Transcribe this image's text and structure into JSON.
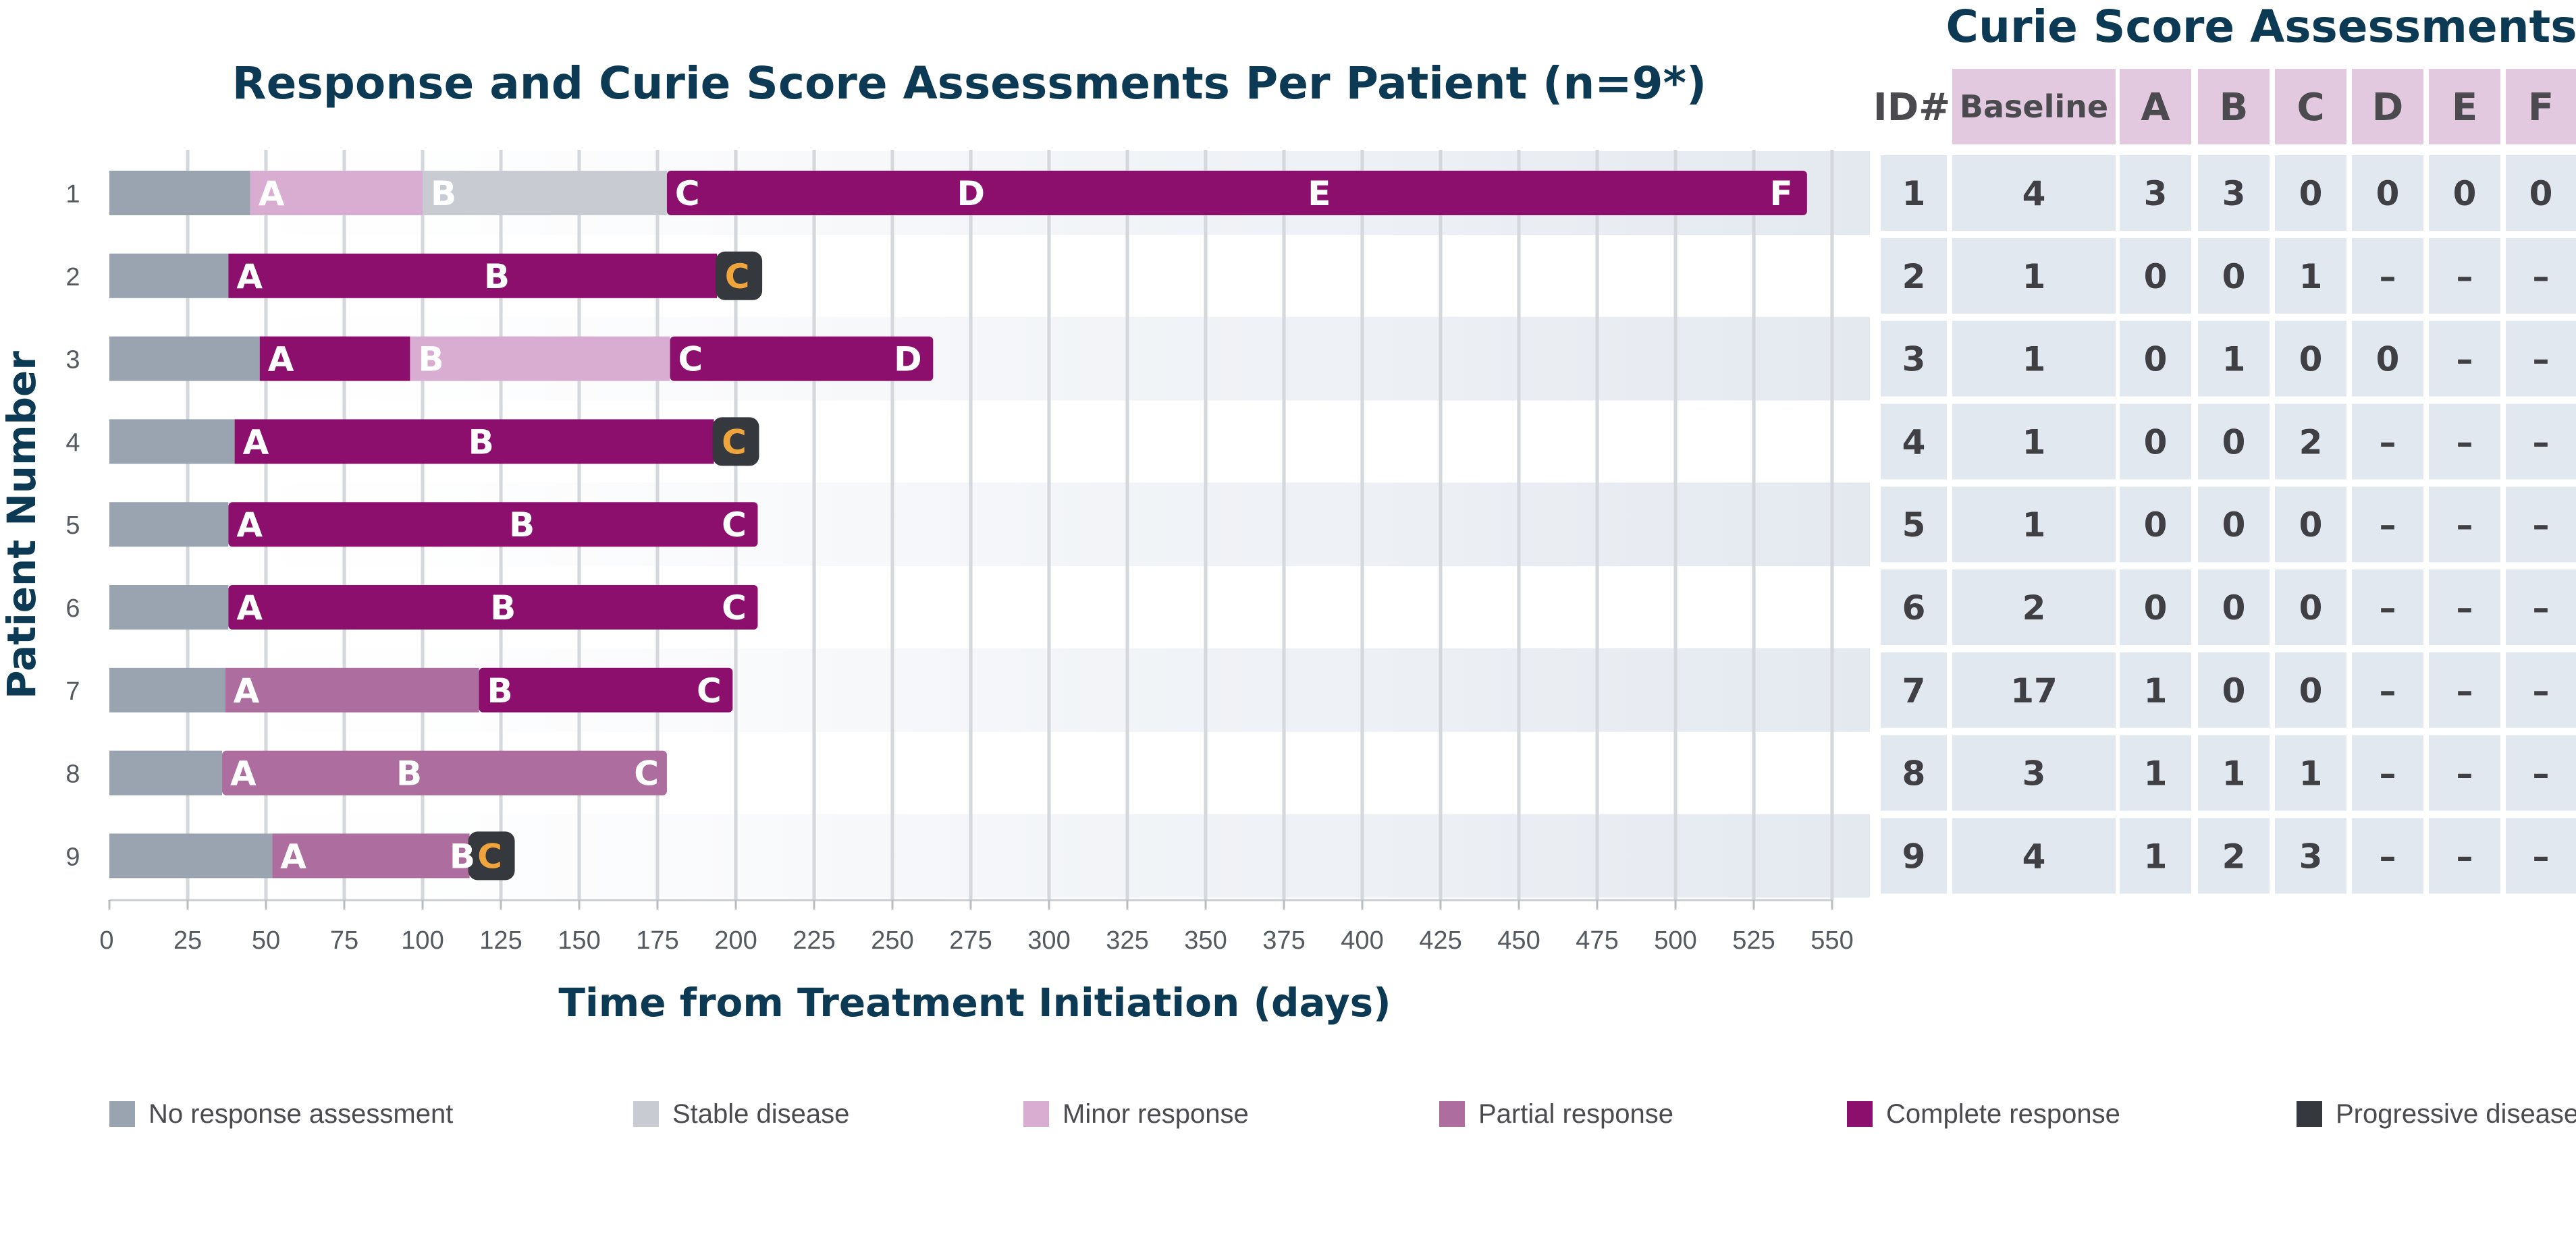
{
  "chart_data": {
    "type": "bar",
    "subtype": "horizontal-stacked-swimmer",
    "title": "Response and Curie Score Assessments Per Patient (n=9*)",
    "xlabel": "Time from Treatment Initiation (days)",
    "ylabel": "Patient Number",
    "xlim": [
      0,
      550
    ],
    "xticks": [
      0,
      25,
      50,
      75,
      100,
      125,
      150,
      175,
      200,
      225,
      250,
      275,
      300,
      325,
      350,
      375,
      400,
      425,
      450,
      475,
      500,
      525,
      550
    ],
    "grid": true,
    "legend_position": "bottom",
    "categories": [
      "1",
      "2",
      "3",
      "4",
      "5",
      "6",
      "7",
      "8",
      "9"
    ],
    "response_types": [
      {
        "key": "none",
        "label": "No response assessment",
        "color": "#9aa4b1"
      },
      {
        "key": "stable",
        "label": "Stable disease",
        "color": "#c8ccd2"
      },
      {
        "key": "minor",
        "label": "Minor response",
        "color": "#d9acd2"
      },
      {
        "key": "partial",
        "label": "Partial response",
        "color": "#ad6d9e"
      },
      {
        "key": "complete",
        "label": "Complete response",
        "color": "#8c0f6e"
      },
      {
        "key": "progressive",
        "label": "Progressive disease",
        "color": "#35383d"
      }
    ],
    "patients": [
      {
        "id": "1",
        "segments": [
          {
            "start": 0,
            "end": 45,
            "type": "none"
          },
          {
            "start": 45,
            "end": 100,
            "type": "minor"
          },
          {
            "start": 100,
            "end": 178,
            "type": "stable"
          },
          {
            "start": 178,
            "end": 542,
            "type": "complete"
          }
        ],
        "markers": [
          {
            "label": "A",
            "x": 45
          },
          {
            "label": "B",
            "x": 100
          },
          {
            "label": "C",
            "x": 178
          },
          {
            "label": "D",
            "x": 268
          },
          {
            "label": "E",
            "x": 380
          },
          {
            "label": "F",
            "x": 540
          }
        ]
      },
      {
        "id": "2",
        "segments": [
          {
            "start": 0,
            "end": 38,
            "type": "none"
          },
          {
            "start": 38,
            "end": 194,
            "type": "complete"
          },
          {
            "start": 194,
            "end": 208,
            "type": "progressive"
          }
        ],
        "markers": [
          {
            "label": "A",
            "x": 38
          },
          {
            "label": "B",
            "x": 117
          },
          {
            "label": "C",
            "x": 194,
            "style": "progressive"
          }
        ]
      },
      {
        "id": "3",
        "segments": [
          {
            "start": 0,
            "end": 48,
            "type": "none"
          },
          {
            "start": 48,
            "end": 96,
            "type": "complete"
          },
          {
            "start": 96,
            "end": 179,
            "type": "minor"
          },
          {
            "start": 179,
            "end": 263,
            "type": "complete"
          }
        ],
        "markers": [
          {
            "label": "A",
            "x": 48
          },
          {
            "label": "B",
            "x": 96
          },
          {
            "label": "C",
            "x": 179
          },
          {
            "label": "D",
            "x": 262
          }
        ]
      },
      {
        "id": "4",
        "segments": [
          {
            "start": 0,
            "end": 40,
            "type": "none"
          },
          {
            "start": 40,
            "end": 193,
            "type": "complete"
          },
          {
            "start": 193,
            "end": 207,
            "type": "progressive"
          }
        ],
        "markers": [
          {
            "label": "A",
            "x": 40
          },
          {
            "label": "B",
            "x": 112
          },
          {
            "label": "C",
            "x": 193,
            "style": "progressive"
          }
        ]
      },
      {
        "id": "5",
        "segments": [
          {
            "start": 0,
            "end": 38,
            "type": "none"
          },
          {
            "start": 38,
            "end": 207,
            "type": "complete"
          }
        ],
        "markers": [
          {
            "label": "A",
            "x": 38
          },
          {
            "label": "B",
            "x": 125
          },
          {
            "label": "C",
            "x": 206
          }
        ]
      },
      {
        "id": "6",
        "segments": [
          {
            "start": 0,
            "end": 38,
            "type": "none"
          },
          {
            "start": 38,
            "end": 207,
            "type": "complete"
          }
        ],
        "markers": [
          {
            "label": "A",
            "x": 38
          },
          {
            "label": "B",
            "x": 119
          },
          {
            "label": "C",
            "x": 206
          }
        ]
      },
      {
        "id": "7",
        "segments": [
          {
            "start": 0,
            "end": 37,
            "type": "none"
          },
          {
            "start": 37,
            "end": 118,
            "type": "partial"
          },
          {
            "start": 118,
            "end": 199,
            "type": "complete"
          }
        ],
        "markers": [
          {
            "label": "A",
            "x": 37
          },
          {
            "label": "B",
            "x": 118
          },
          {
            "label": "C",
            "x": 198
          }
        ]
      },
      {
        "id": "8",
        "segments": [
          {
            "start": 0,
            "end": 36,
            "type": "none"
          },
          {
            "start": 36,
            "end": 178,
            "type": "partial"
          }
        ],
        "markers": [
          {
            "label": "A",
            "x": 36
          },
          {
            "label": "B",
            "x": 89
          },
          {
            "label": "C",
            "x": 178
          }
        ]
      },
      {
        "id": "9",
        "segments": [
          {
            "start": 0,
            "end": 52,
            "type": "none"
          },
          {
            "start": 52,
            "end": 115,
            "type": "partial"
          },
          {
            "start": 115,
            "end": 129,
            "type": "progressive"
          }
        ],
        "markers": [
          {
            "label": "A",
            "x": 52
          },
          {
            "label": "B",
            "x": 106
          },
          {
            "label": "C",
            "x": 115,
            "style": "progressive"
          }
        ]
      }
    ]
  },
  "table": {
    "title": "Curie Score Assessments",
    "headers": [
      "ID#",
      "Baseline",
      "A",
      "B",
      "C",
      "D",
      "E",
      "F"
    ],
    "rows": [
      [
        "1",
        "4",
        "3",
        "3",
        "0",
        "0",
        "0",
        "0"
      ],
      [
        "2",
        "1",
        "0",
        "0",
        "1",
        "–",
        "–",
        "–"
      ],
      [
        "3",
        "1",
        "0",
        "1",
        "0",
        "0",
        "–",
        "–"
      ],
      [
        "4",
        "1",
        "0",
        "0",
        "2",
        "–",
        "–",
        "–"
      ],
      [
        "5",
        "1",
        "0",
        "0",
        "0",
        "–",
        "–",
        "–"
      ],
      [
        "6",
        "2",
        "0",
        "0",
        "0",
        "–",
        "–",
        "–"
      ],
      [
        "7",
        "17",
        "1",
        "0",
        "0",
        "–",
        "–",
        "–"
      ],
      [
        "8",
        "3",
        "1",
        "1",
        "1",
        "–",
        "–",
        "–"
      ],
      [
        "9",
        "4",
        "1",
        "2",
        "3",
        "–",
        "–",
        "–"
      ]
    ]
  },
  "colors": {
    "title": "#0c3a54",
    "band": "#e4e9f0",
    "grid": "#d4d7db",
    "header_fill": "#e2c9df",
    "cell_fill": "#e2e8f0",
    "progressive_label": "#f0a43c"
  }
}
